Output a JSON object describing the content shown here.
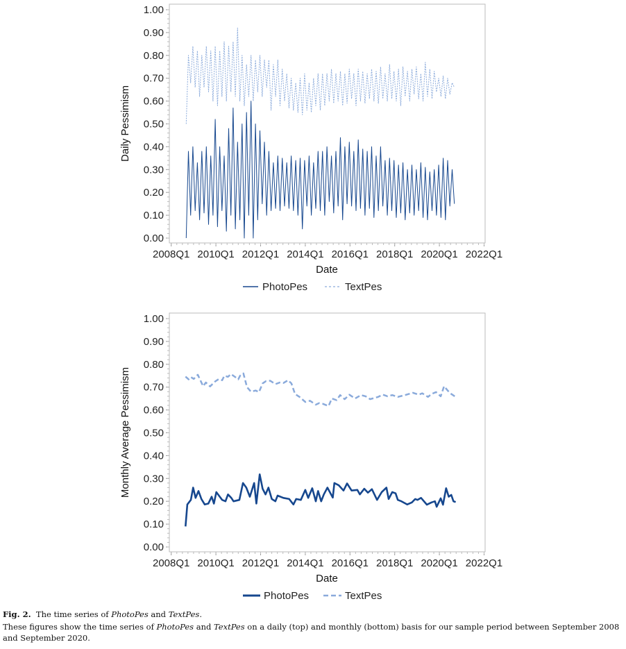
{
  "chart_data": [
    {
      "type": "line",
      "panel": "top",
      "xlabel": "Date",
      "ylabel": "Daily Pessimism",
      "ylim": [
        0,
        1
      ],
      "xlim": [
        2008,
        2022
      ],
      "xticks": [
        2008,
        2010,
        2012,
        2014,
        2016,
        2018,
        2020,
        2022
      ],
      "xtick_labels": [
        "2008Q1",
        "2010Q1",
        "2012Q1",
        "2014Q1",
        "2016Q1",
        "2018Q1",
        "2020Q1",
        "2022Q1"
      ],
      "yticks": [
        0,
        0.1,
        0.2,
        0.3,
        0.4,
        0.5,
        0.6,
        0.7,
        0.8,
        0.9,
        1.0
      ],
      "ytick_labels": [
        "0.00",
        "0.10",
        "0.20",
        "0.30",
        "0.40",
        "0.50",
        "0.60",
        "0.70",
        "0.80",
        "0.90",
        "1.00"
      ],
      "legend": "bottom",
      "note": "daily series condensed to sampled high/low values",
      "x_start": 2008.67,
      "x_step": 0.1,
      "series": [
        {
          "name": "PhotoPes",
          "style": "solid",
          "color": "#16478e",
          "values": [
            0.0,
            0.38,
            0.1,
            0.4,
            0.12,
            0.33,
            0.08,
            0.38,
            0.11,
            0.4,
            0.06,
            0.36,
            0.1,
            0.52,
            0.05,
            0.4,
            0.12,
            0.36,
            0.03,
            0.48,
            0.1,
            0.57,
            0.04,
            0.42,
            0.08,
            0.5,
            0.0,
            0.55,
            0.1,
            0.6,
            0.0,
            0.5,
            0.08,
            0.47,
            0.15,
            0.42,
            0.1,
            0.38,
            0.12,
            0.33,
            0.13,
            0.36,
            0.12,
            0.35,
            0.14,
            0.33,
            0.13,
            0.36,
            0.12,
            0.34,
            0.1,
            0.35,
            0.04,
            0.34,
            0.14,
            0.36,
            0.1,
            0.33,
            0.13,
            0.38,
            0.12,
            0.38,
            0.1,
            0.4,
            0.16,
            0.36,
            0.11,
            0.38,
            0.14,
            0.44,
            0.08,
            0.4,
            0.15,
            0.42,
            0.14,
            0.38,
            0.12,
            0.43,
            0.13,
            0.39,
            0.1,
            0.38,
            0.13,
            0.4,
            0.09,
            0.36,
            0.12,
            0.4,
            0.14,
            0.34,
            0.1,
            0.35,
            0.12,
            0.34,
            0.09,
            0.32,
            0.11,
            0.33,
            0.08,
            0.3,
            0.11,
            0.32,
            0.1,
            0.3,
            0.12,
            0.33,
            0.09,
            0.31,
            0.08,
            0.29,
            0.12,
            0.3,
            0.1,
            0.32,
            0.09,
            0.35,
            0.08,
            0.34,
            0.14,
            0.3,
            0.15
          ]
        },
        {
          "name": "TextPes",
          "style": "dashed",
          "color": "#8aaadb",
          "values": [
            0.5,
            0.8,
            0.68,
            0.84,
            0.66,
            0.82,
            0.62,
            0.8,
            0.66,
            0.84,
            0.64,
            0.82,
            0.6,
            0.84,
            0.58,
            0.82,
            0.62,
            0.86,
            0.6,
            0.84,
            0.64,
            0.86,
            0.62,
            0.92,
            0.6,
            0.8,
            0.58,
            0.76,
            0.62,
            0.8,
            0.6,
            0.78,
            0.64,
            0.8,
            0.62,
            0.78,
            0.66,
            0.78,
            0.56,
            0.76,
            0.62,
            0.78,
            0.58,
            0.74,
            0.6,
            0.72,
            0.57,
            0.7,
            0.56,
            0.68,
            0.55,
            0.7,
            0.54,
            0.72,
            0.56,
            0.68,
            0.55,
            0.7,
            0.58,
            0.72,
            0.56,
            0.72,
            0.58,
            0.72,
            0.6,
            0.74,
            0.59,
            0.72,
            0.6,
            0.73,
            0.58,
            0.72,
            0.59,
            0.74,
            0.61,
            0.72,
            0.58,
            0.74,
            0.6,
            0.73,
            0.59,
            0.72,
            0.61,
            0.74,
            0.6,
            0.73,
            0.59,
            0.75,
            0.61,
            0.72,
            0.6,
            0.76,
            0.61,
            0.73,
            0.6,
            0.74,
            0.58,
            0.75,
            0.62,
            0.73,
            0.6,
            0.74,
            0.63,
            0.75,
            0.61,
            0.72,
            0.6,
            0.77,
            0.62,
            0.74,
            0.61,
            0.73,
            0.64,
            0.7,
            0.62,
            0.71,
            0.61,
            0.7,
            0.63,
            0.68,
            0.66
          ]
        }
      ]
    },
    {
      "type": "line",
      "panel": "bottom",
      "xlabel": "Date",
      "ylabel": "Monthly Average Pessimism",
      "ylim": [
        0,
        1
      ],
      "xlim": [
        2008,
        2022
      ],
      "xticks": [
        2008,
        2010,
        2012,
        2014,
        2016,
        2018,
        2020,
        2022
      ],
      "xtick_labels": [
        "2008Q1",
        "2010Q1",
        "2012Q1",
        "2014Q1",
        "2016Q1",
        "2018Q1",
        "2020Q1",
        "2022Q1"
      ],
      "yticks": [
        0,
        0.1,
        0.2,
        0.3,
        0.4,
        0.5,
        0.6,
        0.7,
        0.8,
        0.9,
        1.0
      ],
      "ytick_labels": [
        "0.00",
        "0.10",
        "0.20",
        "0.30",
        "0.40",
        "0.50",
        "0.60",
        "0.70",
        "0.80",
        "0.90",
        "1.00"
      ],
      "legend": "bottom",
      "series": [
        {
          "name": "PhotoPes",
          "style": "solid",
          "color": "#16478e",
          "points": [
            [
              2008.64,
              0.09
            ],
            [
              2008.72,
              0.186
            ],
            [
              2008.88,
              0.206
            ],
            [
              2008.98,
              0.26
            ],
            [
              2009.09,
              0.215
            ],
            [
              2009.22,
              0.245
            ],
            [
              2009.35,
              0.21
            ],
            [
              2009.5,
              0.186
            ],
            [
              2009.66,
              0.19
            ],
            [
              2009.81,
              0.22
            ],
            [
              2009.91,
              0.19
            ],
            [
              2010.02,
              0.24
            ],
            [
              2010.28,
              0.206
            ],
            [
              2010.43,
              0.2
            ],
            [
              2010.54,
              0.23
            ],
            [
              2010.69,
              0.215
            ],
            [
              2010.79,
              0.2
            ],
            [
              2011.05,
              0.206
            ],
            [
              2011.21,
              0.28
            ],
            [
              2011.36,
              0.26
            ],
            [
              2011.52,
              0.22
            ],
            [
              2011.71,
              0.28
            ],
            [
              2011.81,
              0.19
            ],
            [
              2011.96,
              0.318
            ],
            [
              2012.09,
              0.255
            ],
            [
              2012.22,
              0.23
            ],
            [
              2012.35,
              0.26
            ],
            [
              2012.5,
              0.21
            ],
            [
              2012.66,
              0.2
            ],
            [
              2012.76,
              0.225
            ],
            [
              2013.02,
              0.215
            ],
            [
              2013.28,
              0.21
            ],
            [
              2013.47,
              0.186
            ],
            [
              2013.59,
              0.21
            ],
            [
              2013.8,
              0.206
            ],
            [
              2014.0,
              0.25
            ],
            [
              2014.13,
              0.215
            ],
            [
              2014.31,
              0.257
            ],
            [
              2014.47,
              0.2
            ],
            [
              2014.57,
              0.245
            ],
            [
              2014.71,
              0.2
            ],
            [
              2014.83,
              0.23
            ],
            [
              2014.99,
              0.26
            ],
            [
              2015.23,
              0.216
            ],
            [
              2015.3,
              0.28
            ],
            [
              2015.5,
              0.27
            ],
            [
              2015.71,
              0.247
            ],
            [
              2015.87,
              0.278
            ],
            [
              2016.07,
              0.247
            ],
            [
              2016.33,
              0.25
            ],
            [
              2016.44,
              0.23
            ],
            [
              2016.64,
              0.255
            ],
            [
              2016.8,
              0.238
            ],
            [
              2016.98,
              0.253
            ],
            [
              2017.21,
              0.206
            ],
            [
              2017.42,
              0.24
            ],
            [
              2017.63,
              0.26
            ],
            [
              2017.73,
              0.21
            ],
            [
              2017.89,
              0.24
            ],
            [
              2018.04,
              0.235
            ],
            [
              2018.14,
              0.206
            ],
            [
              2018.3,
              0.2
            ],
            [
              2018.56,
              0.186
            ],
            [
              2018.77,
              0.195
            ],
            [
              2018.92,
              0.21
            ],
            [
              2019.02,
              0.206
            ],
            [
              2019.18,
              0.215
            ],
            [
              2019.44,
              0.185
            ],
            [
              2019.65,
              0.195
            ],
            [
              2019.8,
              0.2
            ],
            [
              2019.88,
              0.176
            ],
            [
              2020.06,
              0.213
            ],
            [
              2020.16,
              0.185
            ],
            [
              2020.3,
              0.257
            ],
            [
              2020.42,
              0.22
            ],
            [
              2020.53,
              0.228
            ],
            [
              2020.63,
              0.2
            ],
            [
              2020.73,
              0.197
            ]
          ]
        },
        {
          "name": "TextPes",
          "style": "dashed",
          "color": "#8aaadb",
          "points": [
            [
              2008.64,
              0.746
            ],
            [
              2008.78,
              0.734
            ],
            [
              2008.88,
              0.744
            ],
            [
              2009.01,
              0.736
            ],
            [
              2009.19,
              0.754
            ],
            [
              2009.43,
              0.704
            ],
            [
              2009.55,
              0.72
            ],
            [
              2009.74,
              0.703
            ],
            [
              2009.97,
              0.725
            ],
            [
              2010.12,
              0.735
            ],
            [
              2010.28,
              0.73
            ],
            [
              2010.38,
              0.75
            ],
            [
              2010.54,
              0.745
            ],
            [
              2010.67,
              0.757
            ],
            [
              2010.85,
              0.745
            ],
            [
              2011.0,
              0.734
            ],
            [
              2011.08,
              0.75
            ],
            [
              2011.23,
              0.76
            ],
            [
              2011.39,
              0.7
            ],
            [
              2011.57,
              0.68
            ],
            [
              2011.78,
              0.685
            ],
            [
              2011.93,
              0.678
            ],
            [
              2012.09,
              0.716
            ],
            [
              2012.24,
              0.726
            ],
            [
              2012.43,
              0.728
            ],
            [
              2012.66,
              0.713
            ],
            [
              2012.86,
              0.72
            ],
            [
              2013.02,
              0.718
            ],
            [
              2013.23,
              0.73
            ],
            [
              2013.38,
              0.716
            ],
            [
              2013.54,
              0.67
            ],
            [
              2013.74,
              0.657
            ],
            [
              2014.0,
              0.635
            ],
            [
              2014.21,
              0.64
            ],
            [
              2014.47,
              0.623
            ],
            [
              2014.62,
              0.63
            ],
            [
              2014.78,
              0.627
            ],
            [
              2015.04,
              0.617
            ],
            [
              2015.19,
              0.65
            ],
            [
              2015.4,
              0.643
            ],
            [
              2015.56,
              0.665
            ],
            [
              2015.76,
              0.647
            ],
            [
              2015.97,
              0.667
            ],
            [
              2016.23,
              0.65
            ],
            [
              2016.49,
              0.665
            ],
            [
              2016.7,
              0.66
            ],
            [
              2016.9,
              0.647
            ],
            [
              2017.11,
              0.653
            ],
            [
              2017.26,
              0.657
            ],
            [
              2017.47,
              0.667
            ],
            [
              2017.68,
              0.66
            ],
            [
              2017.89,
              0.665
            ],
            [
              2018.14,
              0.657
            ],
            [
              2018.46,
              0.665
            ],
            [
              2018.82,
              0.675
            ],
            [
              2019.08,
              0.667
            ],
            [
              2019.23,
              0.673
            ],
            [
              2019.49,
              0.657
            ],
            [
              2019.65,
              0.67
            ],
            [
              2019.85,
              0.678
            ],
            [
              2020.06,
              0.66
            ],
            [
              2020.21,
              0.704
            ],
            [
              2020.37,
              0.685
            ],
            [
              2020.53,
              0.67
            ],
            [
              2020.73,
              0.657
            ]
          ]
        }
      ]
    }
  ],
  "caption": {
    "fig_label": "Fig. 2.",
    "title_pre": "The time series of ",
    "title_photo": "PhotoPes",
    "title_and": " and ",
    "title_text": "TextPes",
    "title_end": ".",
    "body_pre": "These figures show the time series of ",
    "body_photo": "PhotoPes",
    "body_and": " and ",
    "body_text": "TextPes",
    "body_post": " on a daily (top) and monthly (bottom) basis for our sample period between September 2008 and September 2020."
  }
}
